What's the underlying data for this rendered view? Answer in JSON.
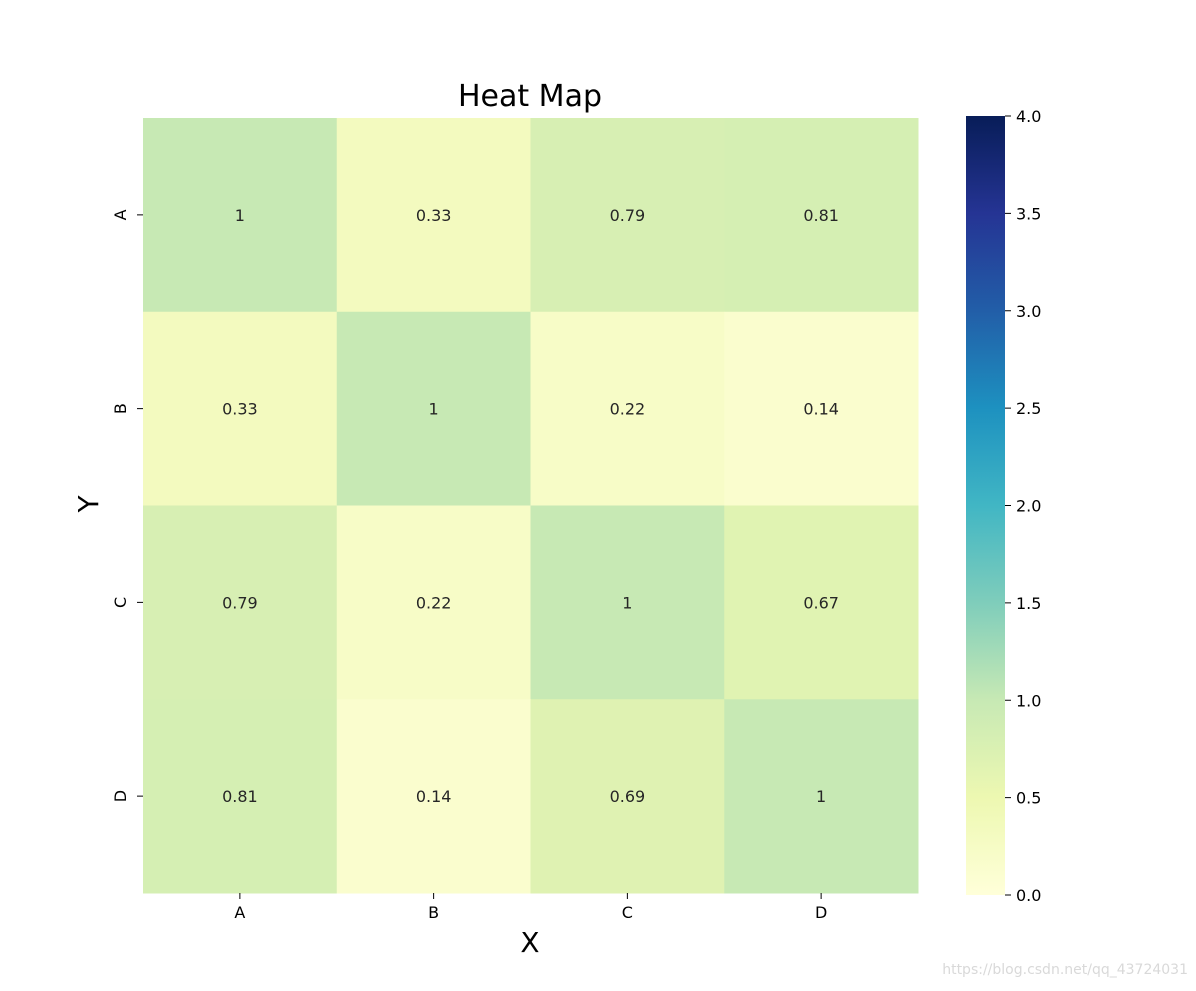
{
  "chart_data": {
    "type": "heatmap",
    "title": "Heat Map",
    "xlabel": "X",
    "ylabel": "Y",
    "x_categories": [
      "A",
      "B",
      "C",
      "D"
    ],
    "y_categories": [
      "A",
      "B",
      "C",
      "D"
    ],
    "values": [
      [
        1,
        0.33,
        0.79,
        0.81
      ],
      [
        0.33,
        1,
        0.22,
        0.14
      ],
      [
        0.79,
        0.22,
        1,
        0.67
      ],
      [
        0.81,
        0.14,
        0.69,
        1
      ]
    ],
    "value_labels": [
      [
        "1",
        "0.33",
        "0.79",
        "0.81"
      ],
      [
        "0.33",
        "1",
        "0.22",
        "0.14"
      ],
      [
        "0.79",
        "0.22",
        "1",
        "0.67"
      ],
      [
        "0.81",
        "0.14",
        "0.69",
        "1"
      ]
    ],
    "colorbar": {
      "range": [
        0,
        4
      ],
      "ticks": [
        "0.0",
        "0.5",
        "1.0",
        "1.5",
        "2.0",
        "2.5",
        "3.0",
        "3.5",
        "4.0"
      ],
      "colormap": "YlGnBu",
      "colors": [
        "#ffffd9",
        "#edf8b1",
        "#c7e9b4",
        "#7fcdbb",
        "#41b6c4",
        "#1d91c0",
        "#225ea8",
        "#253494",
        "#081d58"
      ]
    }
  },
  "watermark": "https://blog.csdn.net/qq_43724031"
}
